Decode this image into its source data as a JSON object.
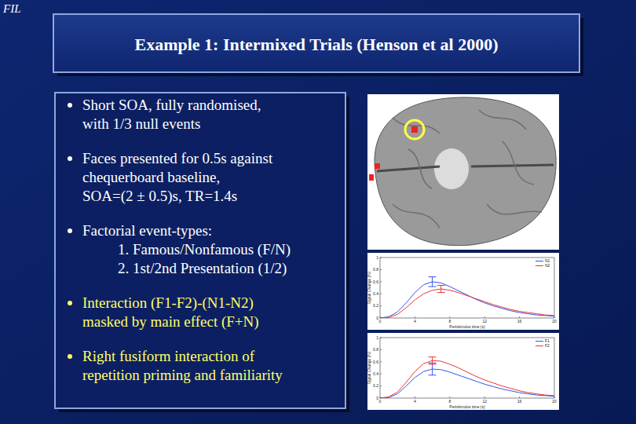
{
  "header": "FIL",
  "title": "Example 1: Intermixed Trials (Henson et al 2000)",
  "bullets": [
    {
      "lines": [
        "Short SOA, fully randomised,",
        "with 1/3 null events"
      ],
      "sublines": []
    },
    {
      "lines": [
        "Faces presented for 0.5s against",
        "chequerboard baseline,",
        "SOA=(2 ± 0.5)s, TR=1.4s"
      ],
      "sublines": []
    },
    {
      "lines": [
        "Factorial event-types:"
      ],
      "sublines": [
        "1. Famous/Nonfamous (F/N)",
        "2. 1st/2nd Presentation (1/2)"
      ]
    },
    {
      "lines": [
        "Interaction (F1-F2)-(N1-N2)",
        "masked by main effect (F+N)"
      ],
      "sublines": [],
      "color": "#ffff66"
    },
    {
      "lines": [
        "Right fusiform interaction of",
        "repetition priming and familiarity"
      ],
      "sublines": [],
      "color": "#ffff66"
    }
  ],
  "chart_data": [
    {
      "type": "line",
      "x_label": "Peristimulus time (s)",
      "y_label": "Signal Change (%)",
      "x": [
        0,
        1,
        2,
        3,
        4,
        5,
        6,
        7,
        8,
        9,
        10,
        11,
        12,
        13,
        14,
        15,
        16,
        17,
        18,
        19,
        20
      ],
      "xlim": [
        0,
        20
      ],
      "xticks": [
        0,
        4,
        8,
        12,
        16,
        20
      ],
      "ylim": [
        0,
        1
      ],
      "yticks": [
        0,
        0.2,
        0.4,
        0.6,
        0.8,
        1
      ],
      "legend": "upper right",
      "series": [
        {
          "name": "N1",
          "color": "#3355ee",
          "values": [
            0,
            0.02,
            0.1,
            0.25,
            0.42,
            0.55,
            0.6,
            0.58,
            0.52,
            0.45,
            0.38,
            0.31,
            0.25,
            0.2,
            0.16,
            0.12,
            0.09,
            0.07,
            0.05,
            0.04,
            0.03
          ],
          "errors": [
            null,
            null,
            null,
            null,
            null,
            null,
            0.08,
            null,
            null,
            null,
            null,
            null,
            null,
            null,
            null,
            null,
            null,
            null,
            null,
            null,
            null
          ]
        },
        {
          "name": "N2",
          "color": "#ee3333",
          "values": [
            0,
            0.01,
            0.06,
            0.17,
            0.3,
            0.4,
            0.46,
            0.48,
            0.46,
            0.42,
            0.37,
            0.32,
            0.27,
            0.22,
            0.18,
            0.14,
            0.11,
            0.09,
            0.07,
            0.05,
            0.04
          ],
          "errors": [
            null,
            null,
            null,
            null,
            null,
            null,
            null,
            0.06,
            null,
            null,
            null,
            null,
            null,
            null,
            null,
            null,
            null,
            null,
            null,
            null,
            null
          ]
        }
      ]
    },
    {
      "type": "line",
      "x_label": "Peristimulus time (s)",
      "y_label": "Signal Change (%)",
      "x": [
        0,
        1,
        2,
        3,
        4,
        5,
        6,
        7,
        8,
        9,
        10,
        11,
        12,
        13,
        14,
        15,
        16,
        17,
        18,
        19,
        20
      ],
      "xlim": [
        0,
        20
      ],
      "xticks": [
        0,
        4,
        8,
        12,
        16,
        20
      ],
      "ylim": [
        0,
        1
      ],
      "yticks": [
        0,
        0.2,
        0.4,
        0.6,
        0.8,
        1
      ],
      "legend": "upper right",
      "series": [
        {
          "name": "F1",
          "color": "#3355ee",
          "values": [
            0,
            0.01,
            0.07,
            0.2,
            0.34,
            0.44,
            0.48,
            0.47,
            0.43,
            0.38,
            0.33,
            0.28,
            0.23,
            0.19,
            0.15,
            0.12,
            0.09,
            0.07,
            0.05,
            0.04,
            0.03
          ],
          "errors": [
            null,
            null,
            null,
            null,
            null,
            null,
            0.1,
            null,
            null,
            null,
            null,
            null,
            null,
            null,
            null,
            null,
            null,
            null,
            null,
            null,
            null
          ]
        },
        {
          "name": "F2",
          "color": "#ee3333",
          "values": [
            0,
            0.02,
            0.1,
            0.26,
            0.44,
            0.57,
            0.62,
            0.61,
            0.56,
            0.5,
            0.43,
            0.36,
            0.3,
            0.25,
            0.2,
            0.16,
            0.12,
            0.09,
            0.07,
            0.05,
            0.04
          ],
          "errors": [
            null,
            null,
            null,
            null,
            null,
            null,
            0.06,
            null,
            null,
            null,
            null,
            null,
            null,
            null,
            null,
            null,
            null,
            null,
            null,
            null,
            null
          ]
        }
      ]
    }
  ]
}
